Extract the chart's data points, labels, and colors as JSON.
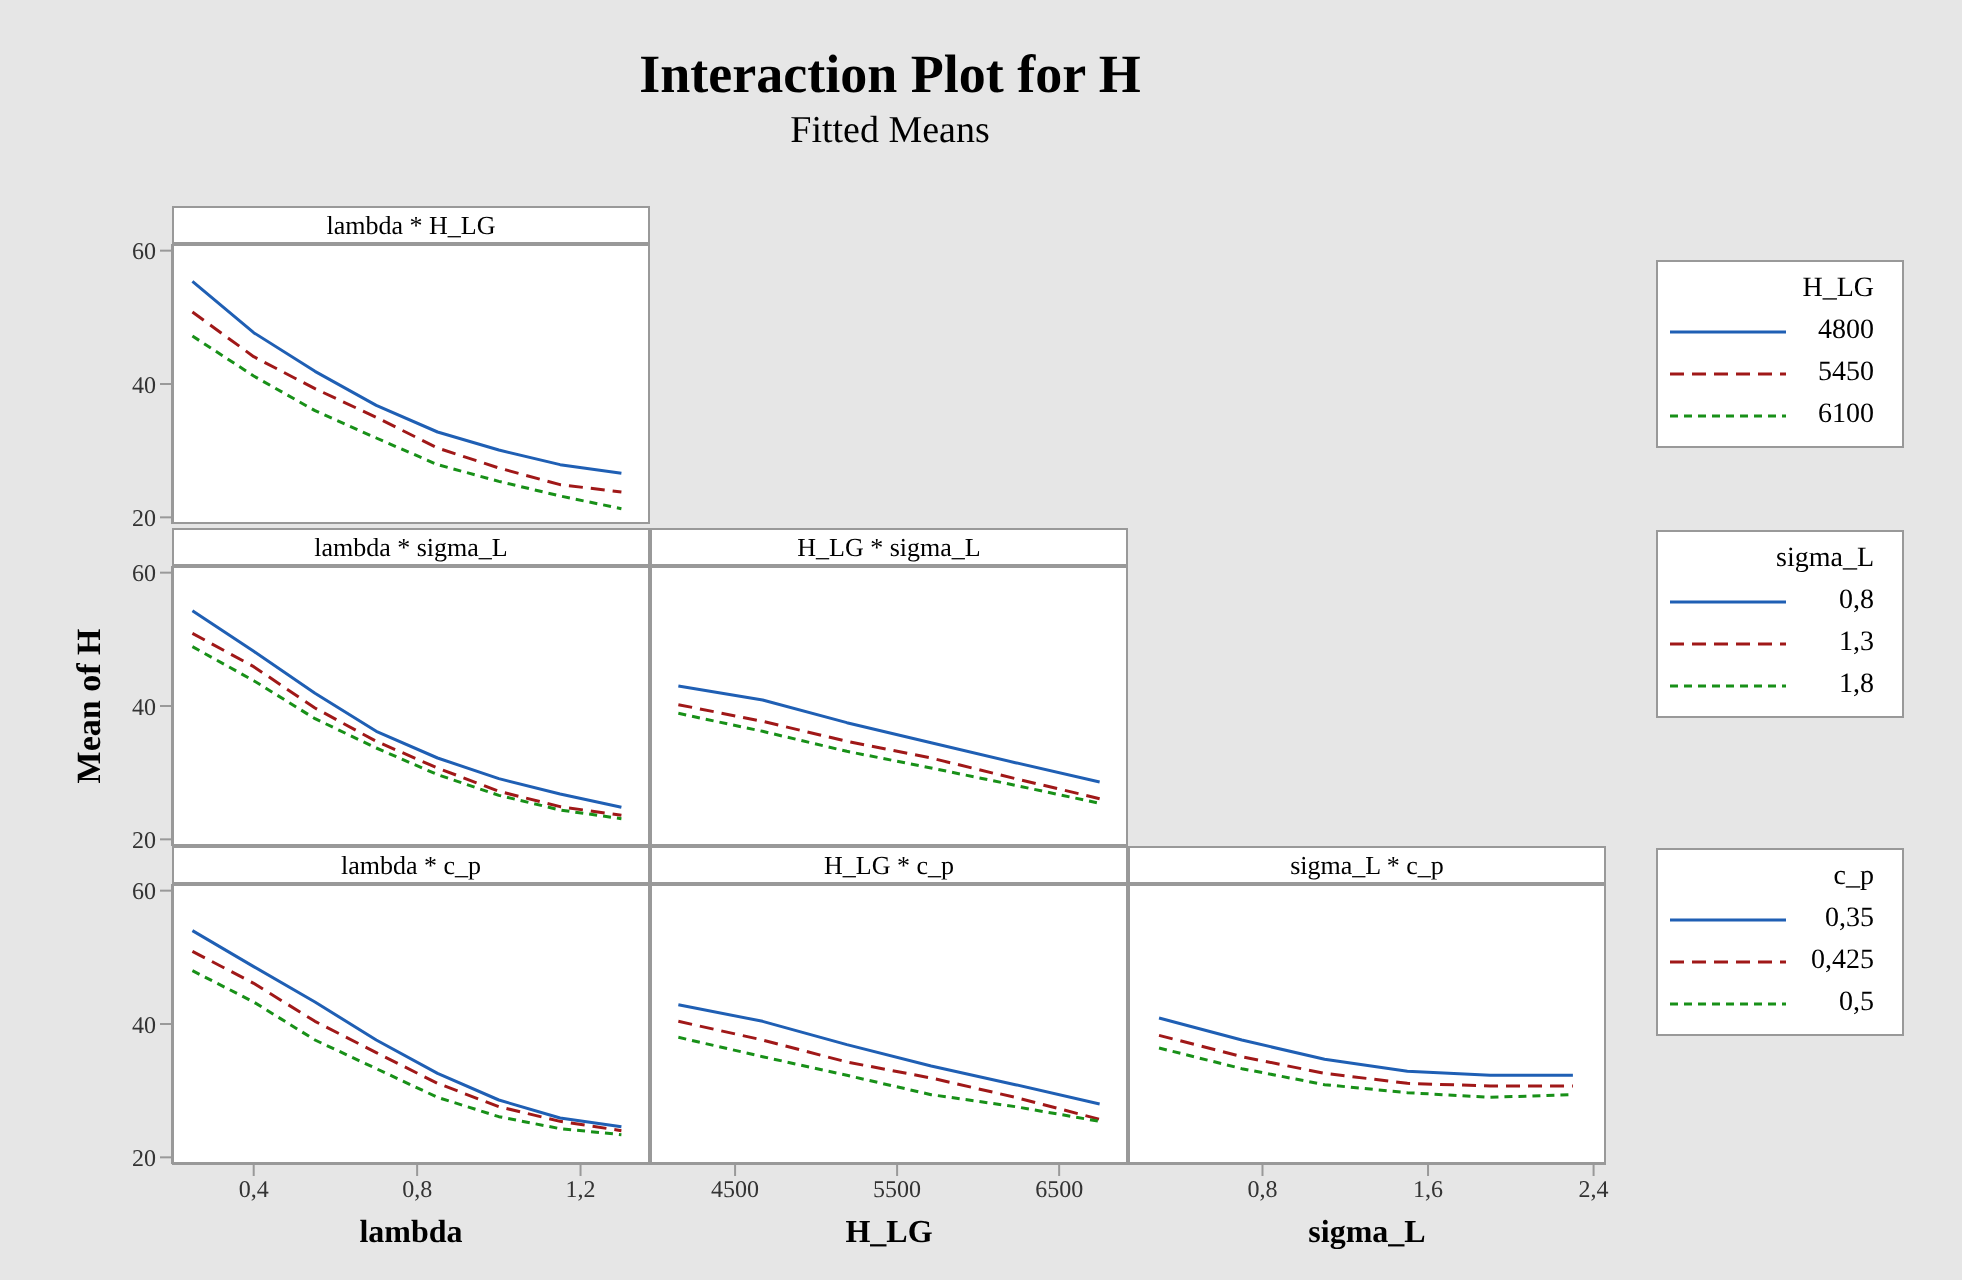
{
  "chart_data": [
    {
      "type": "line",
      "title": "lambda * H_LG",
      "annotations": [
        "Interaction Plot for H",
        "Fitted Means"
      ],
      "x": [
        0.25,
        0.4,
        0.55,
        0.7,
        0.85,
        1.0,
        1.15,
        1.3
      ],
      "xlim": [
        0.2,
        1.37
      ],
      "ylim": [
        19,
        61
      ],
      "yticks": [
        20,
        40,
        60
      ],
      "tick_labels": "y",
      "legend": "right",
      "legend_title": "H_LG",
      "series": [
        {
          "name": "4800",
          "color": "#1f5fb4",
          "line_style": "solid",
          "values": [
            55.4,
            47.7,
            41.9,
            36.8,
            32.8,
            30.1,
            27.9,
            26.6
          ]
        },
        {
          "name": "5450",
          "color": "#a01818",
          "line_style": "dashed",
          "values": [
            50.8,
            44.1,
            39.3,
            35,
            30.4,
            27.4,
            24.9,
            23.8
          ]
        },
        {
          "name": "6100",
          "color": "#189018",
          "line_style": "dotted",
          "values": [
            47.2,
            41.2,
            36,
            31.9,
            27.9,
            25.4,
            23.2,
            21.3
          ]
        }
      ]
    },
    {
      "type": "line",
      "title": "lambda * sigma_L",
      "ylabel": "Mean of H",
      "x": [
        0.25,
        0.4,
        0.55,
        0.7,
        0.85,
        1.0,
        1.15,
        1.3
      ],
      "xlim": [
        0.2,
        1.37
      ],
      "ylim": [
        19,
        61
      ],
      "yticks": [
        20,
        40,
        60
      ],
      "tick_labels": "y",
      "legend": "right",
      "legend_title": "sigma_L",
      "series": [
        {
          "name": "0,8",
          "color": "#1f5fb4",
          "line_style": "solid",
          "values": [
            54.3,
            48.2,
            41.9,
            36.2,
            32.2,
            29.1,
            26.8,
            24.8
          ]
        },
        {
          "name": "1,3",
          "color": "#a01818",
          "line_style": "dashed",
          "values": [
            50.9,
            45.9,
            39.7,
            34.7,
            30.7,
            27.2,
            24.9,
            23.6
          ]
        },
        {
          "name": "1,8",
          "color": "#189018",
          "line_style": "dotted",
          "values": [
            48.9,
            43.8,
            38.1,
            33.7,
            29.7,
            26.6,
            24.4,
            23.1
          ]
        }
      ]
    },
    {
      "type": "line",
      "title": "H_LG * sigma_L",
      "x": [
        4150,
        4670,
        5190,
        5710,
        6230,
        6750
      ],
      "xlim": [
        3975,
        6925
      ],
      "ylim": [
        19,
        61
      ],
      "tick_labels": false,
      "series": [
        {
          "color": "#1f5fb4",
          "line_style": "solid",
          "values": [
            43,
            40.9,
            37.5,
            34.5,
            31.5,
            28.6
          ]
        },
        {
          "color": "#a01818",
          "line_style": "dashed",
          "values": [
            40.2,
            37.7,
            34.7,
            32.2,
            29.1,
            26.1
          ]
        },
        {
          "color": "#189018",
          "line_style": "dotted",
          "values": [
            38.9,
            36.2,
            33.2,
            30.7,
            28.1,
            25.4
          ]
        }
      ]
    },
    {
      "type": "line",
      "title": "lambda * c_p",
      "xlabel": "lambda",
      "x": [
        0.25,
        0.4,
        0.55,
        0.7,
        0.85,
        1.0,
        1.15,
        1.3
      ],
      "xlim": [
        0.2,
        1.37
      ],
      "xticks": [
        {
          "value": 0.4,
          "label": "0,4"
        },
        {
          "value": 0.8,
          "label": "0,8"
        },
        {
          "value": 1.2,
          "label": "1,2"
        }
      ],
      "ylim": [
        19,
        61
      ],
      "yticks": [
        20,
        40,
        60
      ],
      "legend": "right",
      "legend_title": "c_p",
      "series": [
        {
          "name": "0,35",
          "color": "#1f5fb4",
          "line_style": "solid",
          "values": [
            54,
            48.6,
            43.3,
            37.6,
            32.6,
            28.6,
            25.9,
            24.6
          ]
        },
        {
          "name": "0,425",
          "color": "#a01818",
          "line_style": "dashed",
          "values": [
            50.9,
            46.1,
            40.4,
            35.7,
            31.1,
            27.6,
            25.4,
            24
          ]
        },
        {
          "name": "0,5",
          "color": "#189018",
          "line_style": "dotted",
          "values": [
            48,
            43.3,
            37.6,
            33.3,
            29,
            26.1,
            24.3,
            23.4
          ]
        }
      ]
    },
    {
      "type": "line",
      "title": "H_LG * c_p",
      "xlabel": "H_LG",
      "x": [
        4150,
        4670,
        5190,
        5710,
        6230,
        6750
      ],
      "xlim": [
        3975,
        6925
      ],
      "xticks": [
        4500,
        5500,
        6500
      ],
      "ylim": [
        19,
        61
      ],
      "tick_labels": "x",
      "series": [
        {
          "color": "#1f5fb4",
          "line_style": "solid",
          "values": [
            42.9,
            40.4,
            36.9,
            33.7,
            30.9,
            28
          ]
        },
        {
          "color": "#a01818",
          "line_style": "dashed",
          "values": [
            40.4,
            37.6,
            34.3,
            31.9,
            29,
            25.7
          ]
        },
        {
          "color": "#189018",
          "line_style": "dotted",
          "values": [
            38,
            35.1,
            32.3,
            29.4,
            27.6,
            25.4
          ]
        }
      ]
    },
    {
      "type": "line",
      "title": "sigma_L * c_p",
      "xlabel": "sigma_L",
      "x": [
        0.3,
        0.7,
        1.1,
        1.5,
        1.9,
        2.3
      ],
      "xlim": [
        0.15,
        2.46
      ],
      "xticks": [
        {
          "value": 0.8,
          "label": "0,8"
        },
        {
          "value": 1.6,
          "label": "1,6"
        },
        {
          "value": 2.4,
          "label": "2,4"
        }
      ],
      "ylim": [
        19,
        61
      ],
      "tick_labels": "x",
      "series": [
        {
          "color": "#1f5fb4",
          "line_style": "solid",
          "values": [
            40.9,
            37.6,
            34.7,
            32.9,
            32.3,
            32.3
          ]
        },
        {
          "color": "#a01818",
          "line_style": "dashed",
          "values": [
            38.3,
            35.1,
            32.6,
            31.1,
            30.7,
            30.7
          ]
        },
        {
          "color": "#189018",
          "line_style": "dotted",
          "values": [
            36.4,
            33.3,
            30.9,
            29.7,
            29,
            29.4
          ]
        }
      ]
    }
  ]
}
